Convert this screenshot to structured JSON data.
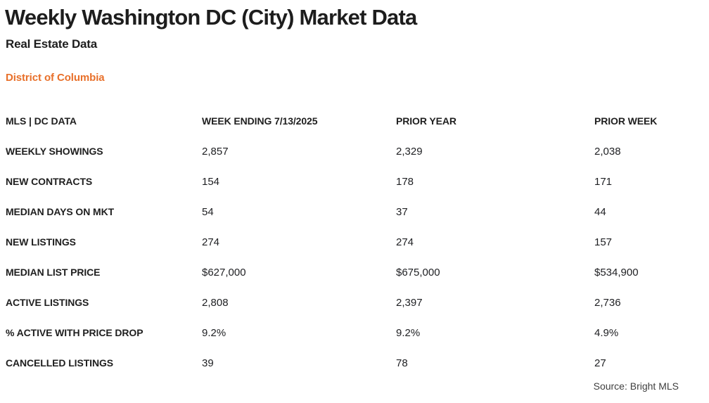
{
  "page": {
    "title": "Weekly Washington DC (City) Market Data",
    "subtitle": "Real Estate Data",
    "region_label": "District of Columbia",
    "source": "Source: Bright MLS",
    "accent_color": "#e8702a",
    "text_color": "#202124"
  },
  "chart_data": {
    "type": "table",
    "title": "Weekly Washington DC (City) Market Data",
    "subtitle": "Real Estate Data",
    "region": "District of Columbia",
    "source": "Source: Bright MLS",
    "columns": [
      "MLS | DC DATA",
      "WEEK ENDING 7/13/2025",
      "PRIOR YEAR",
      "PRIOR WEEK"
    ],
    "rows": [
      {
        "label": "WEEKLY SHOWINGS",
        "values": [
          "2,857",
          "2,329",
          "2,038"
        ]
      },
      {
        "label": "NEW CONTRACTS",
        "values": [
          "154",
          "178",
          "171"
        ]
      },
      {
        "label": "MEDIAN DAYS ON MKT",
        "values": [
          "54",
          "37",
          "44"
        ]
      },
      {
        "label": "NEW LISTINGS",
        "values": [
          "274",
          "274",
          "157"
        ]
      },
      {
        "label": "MEDIAN LIST PRICE",
        "values": [
          "$627,000",
          "$675,000",
          "$534,900"
        ]
      },
      {
        "label": "ACTIVE LISTINGS",
        "values": [
          "2,808",
          "2,397",
          "2,736"
        ]
      },
      {
        "label": "% ACTIVE WITH PRICE DROP",
        "values": [
          "9.2%",
          "9.2%",
          "4.9%"
        ]
      },
      {
        "label": "CANCELLED LISTINGS",
        "values": [
          "39",
          "78",
          "27"
        ]
      }
    ]
  }
}
